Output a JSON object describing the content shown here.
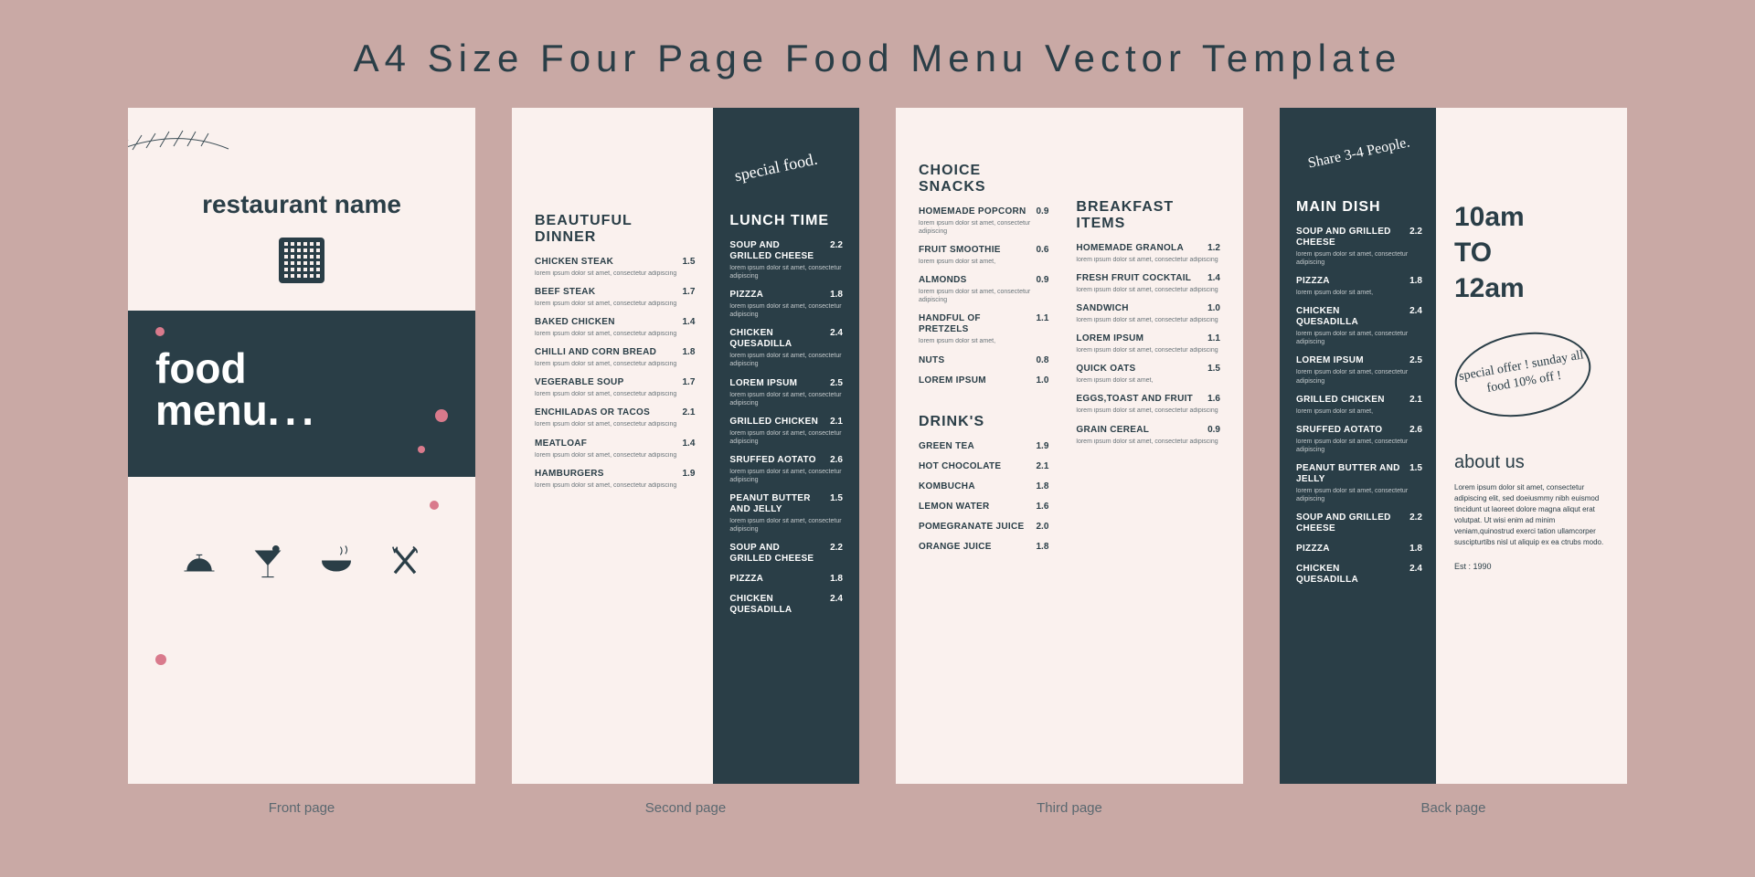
{
  "colors": {
    "bg": "#c9a9a5",
    "page": "#faf1ee",
    "dark": "#2a3e47",
    "accent": "#d97a8c"
  },
  "title": "A4 Size Four Page Food Menu Vector Template",
  "captions": [
    "Front page",
    "Second page",
    "Third page",
    "Back page"
  ],
  "page1": {
    "restaurant": "restaurant name",
    "food": "food",
    "menu": "menu",
    "dots": "..."
  },
  "page2": {
    "script": "special food.",
    "left": {
      "title": "BEAUTUFUL DINNER",
      "items": [
        {
          "n": "CHICKEN STEAK",
          "p": "1.5",
          "d": "lorem ipsum dolor sit amet, consectetur adipiscing"
        },
        {
          "n": "BEEF STEAK",
          "p": "1.7",
          "d": "lorem ipsum dolor sit amet, consectetur adipiscing"
        },
        {
          "n": "BAKED CHICKEN",
          "p": "1.4",
          "d": "lorem ipsum dolor sit amet, consectetur adipiscing"
        },
        {
          "n": "CHILLI AND CORN BREAD",
          "p": "1.8",
          "d": "lorem ipsum dolor sit amet, consectetur adipiscing"
        },
        {
          "n": "VEGERABLE SOUP",
          "p": "1.7",
          "d": "lorem ipsum dolor sit amet, consectetur adipiscing"
        },
        {
          "n": "ENCHILADAS OR TACOS",
          "p": "2.1",
          "d": "lorem ipsum dolor sit amet, consectetur adipiscing"
        },
        {
          "n": "MEATLOAF",
          "p": "1.4",
          "d": "lorem ipsum dolor sit amet, consectetur adipiscing"
        },
        {
          "n": "HAMBURGERS",
          "p": "1.9",
          "d": "lorem ipsum dolor sit amet, consectetur adipiscing"
        }
      ]
    },
    "right": {
      "title": "LUNCH TIME",
      "items": [
        {
          "n": "SOUP AND GRILLED CHEESE",
          "p": "2.2",
          "d": "lorem ipsum dolor sit amet, consectetur adipiscing"
        },
        {
          "n": "PIZZZA",
          "p": "1.8",
          "d": "lorem ipsum dolor sit amet, consectetur adipiscing"
        },
        {
          "n": "CHICKEN QUESADILLA",
          "p": "2.4",
          "d": "lorem ipsum dolor sit amet, consectetur adipiscing"
        },
        {
          "n": "LOREM IPSUM",
          "p": "2.5",
          "d": "lorem ipsum dolor sit amet, consectetur adipiscing"
        },
        {
          "n": "GRILLED CHICKEN",
          "p": "2.1",
          "d": "lorem ipsum dolor sit amet, consectetur adipiscing"
        },
        {
          "n": "SRUFFED AOTATO",
          "p": "2.6",
          "d": "lorem ipsum dolor sit amet, consectetur adipiscing"
        },
        {
          "n": "PEANUT BUTTER AND JELLY",
          "p": "1.5",
          "d": "lorem ipsum dolor sit amet, consectetur adipiscing"
        },
        {
          "n": "SOUP AND GRILLED CHEESE",
          "p": "2.2",
          "d": ""
        },
        {
          "n": "PIZZZA",
          "p": "1.8",
          "d": ""
        },
        {
          "n": "CHICKEN QUESADILLA",
          "p": "2.4",
          "d": ""
        }
      ]
    }
  },
  "page3": {
    "left1": {
      "title": "CHOICE SNACKS",
      "items": [
        {
          "n": "HOMEMADE POPCORN",
          "p": "0.9",
          "d": "lorem ipsum dolor sit amet, consectetur adipiscing"
        },
        {
          "n": "FRUIT SMOOTHIE",
          "p": "0.6",
          "d": "lorem ipsum dolor sit amet,"
        },
        {
          "n": "ALMONDS",
          "p": "0.9",
          "d": "lorem ipsum dolor sit amet, consectetur adipiscing"
        },
        {
          "n": "HANDFUL OF PRETZELS",
          "p": "1.1",
          "d": "lorem ipsum dolor sit amet,"
        },
        {
          "n": "NUTS",
          "p": "0.8",
          "d": ""
        },
        {
          "n": "LOREM IPSUM",
          "p": "1.0",
          "d": ""
        }
      ]
    },
    "left2": {
      "title": "DRINK'S",
      "items": [
        {
          "n": "GREEN TEA",
          "p": "1.9",
          "d": ""
        },
        {
          "n": "HOT CHOCOLATE",
          "p": "2.1",
          "d": ""
        },
        {
          "n": "KOMBUCHA",
          "p": "1.8",
          "d": ""
        },
        {
          "n": "LEMON WATER",
          "p": "1.6",
          "d": ""
        },
        {
          "n": " POMEGRANATE JUICE",
          "p": "2.0",
          "d": ""
        },
        {
          "n": "ORANGE JUICE",
          "p": "1.8",
          "d": ""
        }
      ]
    },
    "right": {
      "title": "BREAKFAST ITEMS",
      "items": [
        {
          "n": "HOMEMADE GRANOLA",
          "p": "1.2",
          "d": "lorem ipsum dolor sit amet, consectetur adipiscing"
        },
        {
          "n": "FRESH FRUIT COCKTAIL",
          "p": "1.4",
          "d": "lorem ipsum dolor sit amet, consectetur adipiscing"
        },
        {
          "n": "SANDWICH",
          "p": "1.0",
          "d": "lorem ipsum dolor sit amet, consectetur adipiscing"
        },
        {
          "n": "LOREM IPSUM",
          "p": "1.1",
          "d": "lorem ipsum dolor sit amet, consectetur adipiscing"
        },
        {
          "n": "QUICK OATS",
          "p": "1.5",
          "d": "lorem ipsum dolor sit amet,"
        },
        {
          "n": "EGGS,TOAST AND FRUIT",
          "p": "1.6",
          "d": "lorem ipsum dolor sit amet, consectetur adipiscing"
        },
        {
          "n": "GRAIN CEREAL",
          "p": "0.9",
          "d": "lorem ipsum dolor sit amet, consectetur adipiscing"
        }
      ]
    }
  },
  "page4": {
    "script": "Share 3-4 People.",
    "left": {
      "title": "MAIN DISH",
      "items": [
        {
          "n": "SOUP AND GRILLED CHEESE",
          "p": "2.2",
          "d": "lorem ipsum dolor sit amet, consectetur adipiscing"
        },
        {
          "n": "PIZZZA",
          "p": "1.8",
          "d": "lorem ipsum dolor sit amet,"
        },
        {
          "n": "CHICKEN QUESADILLA",
          "p": "2.4",
          "d": "lorem ipsum dolor sit amet, consectetur adipiscing"
        },
        {
          "n": "LOREM IPSUM",
          "p": "2.5",
          "d": "lorem ipsum dolor sit amet, consectetur adipiscing"
        },
        {
          "n": "GRILLED CHICKEN",
          "p": "2.1",
          "d": "lorem ipsum dolor sit amet,"
        },
        {
          "n": "SRUFFED AOTATO",
          "p": "2.6",
          "d": "lorem ipsum dolor sit amet, consectetur adipiscing"
        },
        {
          "n": "PEANUT BUTTER AND JELLY",
          "p": "1.5",
          "d": "lorem ipsum dolor sit amet, consectetur adipiscing"
        },
        {
          "n": "SOUP AND GRILLED CHEESE",
          "p": "2.2",
          "d": ""
        },
        {
          "n": "PIZZZA",
          "p": "1.8",
          "d": ""
        },
        {
          "n": "CHICKEN QUESADILLA",
          "p": "2.4",
          "d": ""
        }
      ]
    },
    "hours": {
      "l1": "10am",
      "l2": "TO",
      "l3": "12am"
    },
    "offer": "special offer ! sunday all food 10% off !",
    "about_h": "about us",
    "about_t": "Lorem ipsum dolor sit amet, consectetur adipiscing elit, sed doeiusmmy nibh euismod tincidunt ut laoreet dolore magna aliqut erat volutpat. Ut wisi enim ad minim veniam,quinostrud exerci tation ullamcorper suscipturtibs nisl ut aliquip ex ea ctrubs modo.",
    "est": "Est : 1990"
  }
}
